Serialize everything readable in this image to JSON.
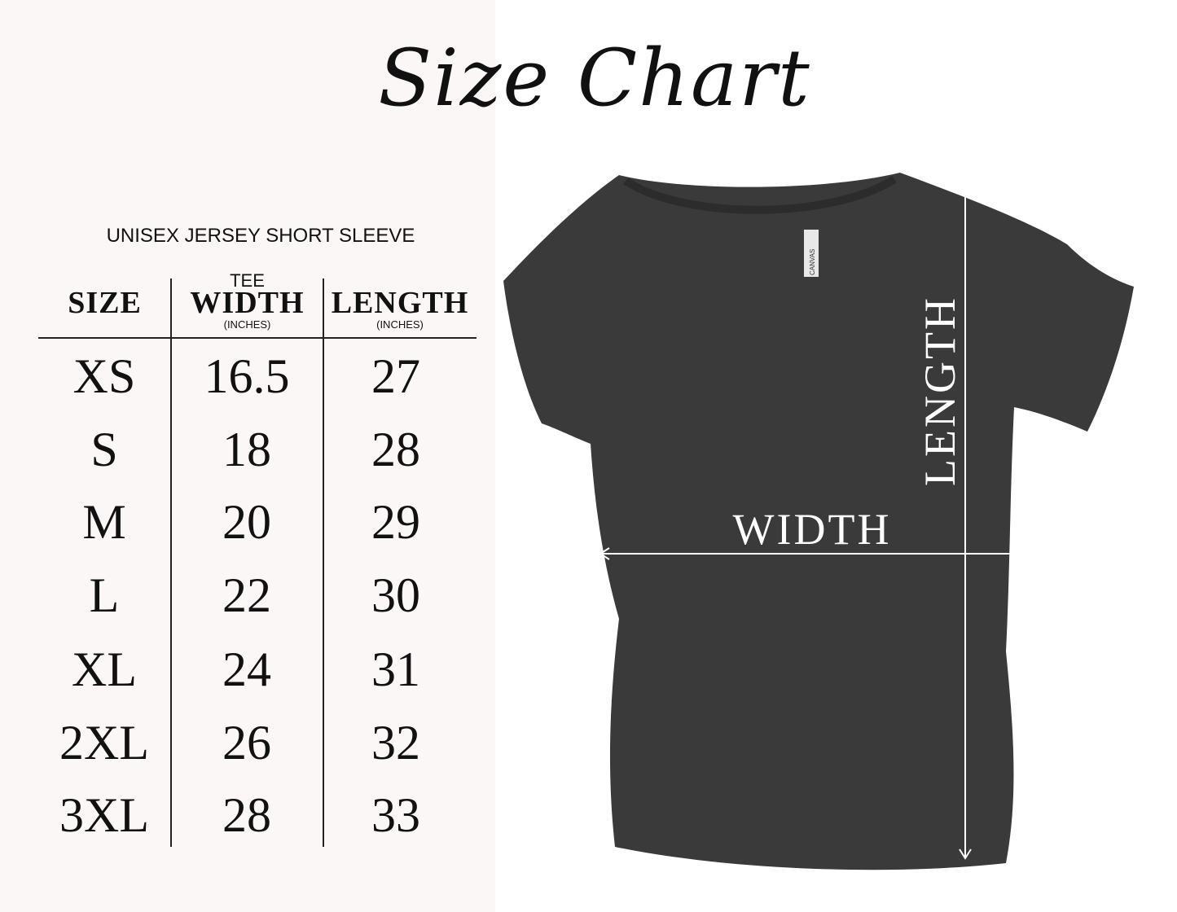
{
  "title": "Size Chart",
  "subtitle": "UNISEX JERSEY SHORT SLEEVE",
  "table": {
    "headers": {
      "size": "SIZE",
      "width_prefix": "TEE",
      "width": "WIDTH",
      "width_unit": "(INCHES)",
      "length": "LENGTH",
      "length_unit": "(INCHES)"
    },
    "rows": [
      {
        "size": "XS",
        "width": "16.5",
        "length": "27"
      },
      {
        "size": "S",
        "width": "18",
        "length": "28"
      },
      {
        "size": "M",
        "width": "20",
        "length": "29"
      },
      {
        "size": "L",
        "width": "22",
        "length": "30"
      },
      {
        "size": "XL",
        "width": "24",
        "length": "31"
      },
      {
        "size": "2XL",
        "width": "26",
        "length": "32"
      },
      {
        "size": "3XL",
        "width": "28",
        "length": "33"
      }
    ]
  },
  "diagram": {
    "width_label": "WIDTH",
    "length_label": "LENGTH",
    "tag_text": "CANVAS",
    "shirt_color": "#3a3a3a"
  }
}
